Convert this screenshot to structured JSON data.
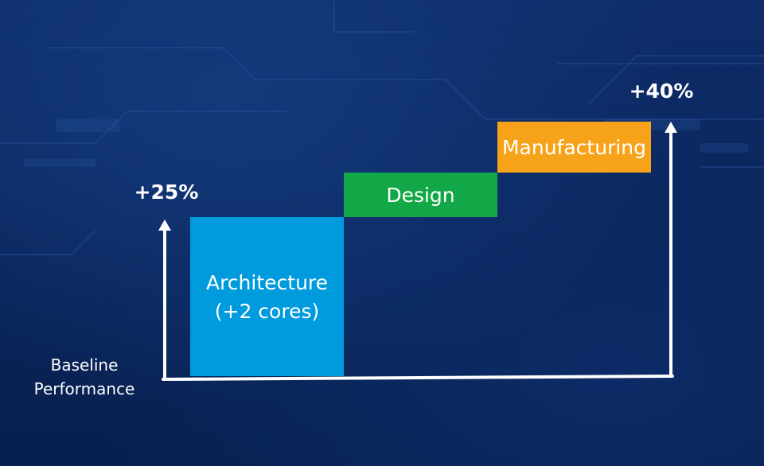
{
  "chart_data": {
    "type": "bar",
    "title": "",
    "xlabel": "",
    "ylabel": "",
    "baseline_label": [
      "Baseline",
      "Performance"
    ],
    "ylim": [
      0,
      40
    ],
    "segments": [
      {
        "name": "Architecture",
        "label_lines": [
          "Architecture",
          "(+2 cores)"
        ],
        "start": 0,
        "end": 25,
        "color": "#009bdc",
        "text_color": "#ffffff"
      },
      {
        "name": "Design",
        "label_lines": [
          "Design"
        ],
        "start": 25,
        "end": 32,
        "color": "#12a847",
        "text_color": "#ffffff"
      },
      {
        "name": "Manufacturing",
        "label_lines": [
          "Manufacturing"
        ],
        "start": 32,
        "end": 40,
        "color": "#f7a31a",
        "text_color": "#ffffff"
      }
    ],
    "markers": [
      {
        "label": "+25%",
        "value": 25,
        "side": "left"
      },
      {
        "label": "+40%",
        "value": 40,
        "side": "right"
      }
    ]
  },
  "colors": {
    "background": "#0a2459",
    "axis": "#ffffff",
    "text": "#ffffff"
  }
}
